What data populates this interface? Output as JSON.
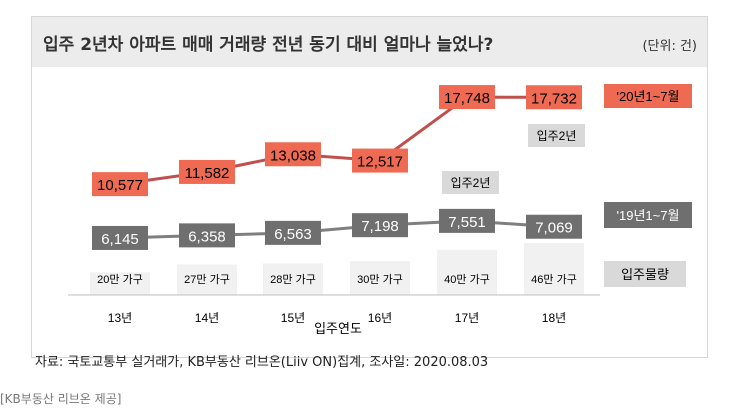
{
  "colors": {
    "series_2020": "#ee6a52",
    "series_2020_line": "#c0504d",
    "series_2019": "#6f6f6f",
    "series_2019_line": "#7f7f7f",
    "bar": "#f1f1f1",
    "tag": "#d9d9d9"
  },
  "chart_data": {
    "type": "line",
    "title": "입주 2년차 아파트 매매 거래량 전년 동기 대비 얼마나 늘었나?",
    "unit_label": "(단위: 건)",
    "xlabel": "입주연도",
    "categories": [
      "13년",
      "14년",
      "15년",
      "16년",
      "17년",
      "18년"
    ],
    "ylim": [
      0,
      20000
    ],
    "series": [
      {
        "name": "'20년1~7월",
        "values": [
          10577,
          11582,
          13038,
          12517,
          17748,
          17732
        ],
        "labels": [
          "10,577",
          "11,582",
          "13,038",
          "12,517",
          "17,748",
          "17,732"
        ]
      },
      {
        "name": "'19년1~7월",
        "values": [
          6145,
          6358,
          6563,
          7198,
          7551,
          7069
        ],
        "labels": [
          "6,145",
          "6,358",
          "6,563",
          "7,198",
          "7,551",
          "7,069"
        ]
      }
    ],
    "move_in": {
      "name": "입주물량",
      "values": [
        20,
        27,
        28,
        30,
        40,
        46
      ],
      "unit": "만 가구",
      "labels": [
        "20만 가구",
        "27만 가구",
        "28만 가구",
        "30만 가구",
        "40만 가구",
        "46만 가구"
      ]
    },
    "annotations": [
      "입주2년",
      "입주2년"
    ],
    "grid": false,
    "legend": "right"
  },
  "footer": {
    "source": "자료: 국토교통부 실거래가, KB부동산 리브온(Liiv ON)집계, 조사일: 2020.08.03",
    "credit": "[KB부동산 리브온 제공]"
  }
}
